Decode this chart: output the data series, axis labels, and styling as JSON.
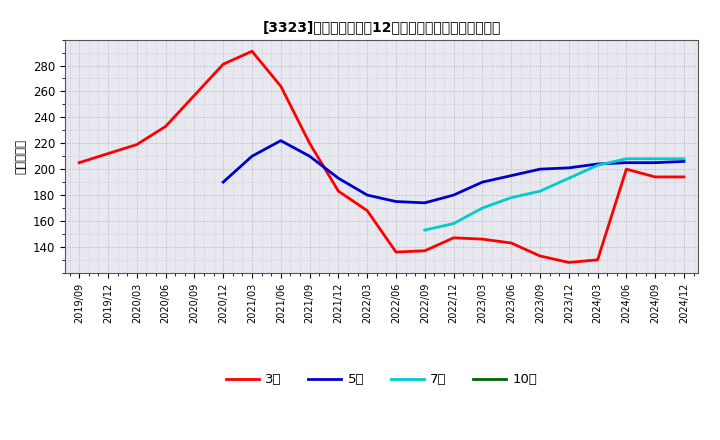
{
  "title": "[3323]　当期組純利益12か月移動合計の平均値の推移",
  "ylabel": "（百万円）",
  "background_color": "#ffffff",
  "grid_color": "#aaaaaa",
  "plot_bg_color": "#e8e8f0",
  "series": {
    "3year": {
      "label": "3年",
      "color": "#ff0000",
      "points": [
        [
          "2019/09",
          205
        ],
        [
          "2019/12",
          212
        ],
        [
          "2020/03",
          219
        ],
        [
          "2020/06",
          233
        ],
        [
          "2020/09",
          257
        ],
        [
          "2020/12",
          281
        ],
        [
          "2021/03",
          291
        ],
        [
          "2021/06",
          264
        ],
        [
          "2021/09",
          220
        ],
        [
          "2021/12",
          183
        ],
        [
          "2022/03",
          168
        ],
        [
          "2022/06",
          136
        ],
        [
          "2022/09",
          137
        ],
        [
          "2022/12",
          147
        ],
        [
          "2023/03",
          146
        ],
        [
          "2023/06",
          143
        ],
        [
          "2023/09",
          133
        ],
        [
          "2023/12",
          128
        ],
        [
          "2024/03",
          130
        ],
        [
          "2024/06",
          200
        ],
        [
          "2024/09",
          194
        ],
        [
          "2024/12",
          194
        ]
      ]
    },
    "5year": {
      "label": "5年",
      "color": "#0000cc",
      "points": [
        [
          "2020/12",
          190
        ],
        [
          "2021/03",
          210
        ],
        [
          "2021/06",
          222
        ],
        [
          "2021/09",
          210
        ],
        [
          "2021/12",
          193
        ],
        [
          "2022/03",
          180
        ],
        [
          "2022/06",
          175
        ],
        [
          "2022/09",
          174
        ],
        [
          "2022/12",
          180
        ],
        [
          "2023/03",
          190
        ],
        [
          "2023/06",
          195
        ],
        [
          "2023/09",
          200
        ],
        [
          "2023/12",
          201
        ],
        [
          "2024/03",
          204
        ],
        [
          "2024/06",
          205
        ],
        [
          "2024/09",
          205
        ],
        [
          "2024/12",
          206
        ]
      ]
    },
    "7year": {
      "label": "7年",
      "color": "#00cccc",
      "points": [
        [
          "2022/09",
          153
        ],
        [
          "2022/12",
          158
        ],
        [
          "2023/03",
          170
        ],
        [
          "2023/06",
          178
        ],
        [
          "2023/09",
          183
        ],
        [
          "2023/12",
          193
        ],
        [
          "2024/03",
          203
        ],
        [
          "2024/06",
          208
        ],
        [
          "2024/09",
          208
        ],
        [
          "2024/12",
          208
        ]
      ]
    },
    "10year": {
      "label": "10年",
      "color": "#006600",
      "points": []
    }
  },
  "xtick_labels": [
    "2019/09",
    "2019/12",
    "2020/03",
    "2020/06",
    "2020/09",
    "2020/12",
    "2021/03",
    "2021/06",
    "2021/09",
    "2021/12",
    "2022/03",
    "2022/06",
    "2022/09",
    "2022/12",
    "2023/03",
    "2023/06",
    "2023/09",
    "2023/12",
    "2024/03",
    "2024/06",
    "2024/09",
    "2024/12"
  ],
  "ylim": [
    120,
    300
  ],
  "yticks": [
    140,
    160,
    180,
    200,
    220,
    240,
    260,
    280
  ]
}
